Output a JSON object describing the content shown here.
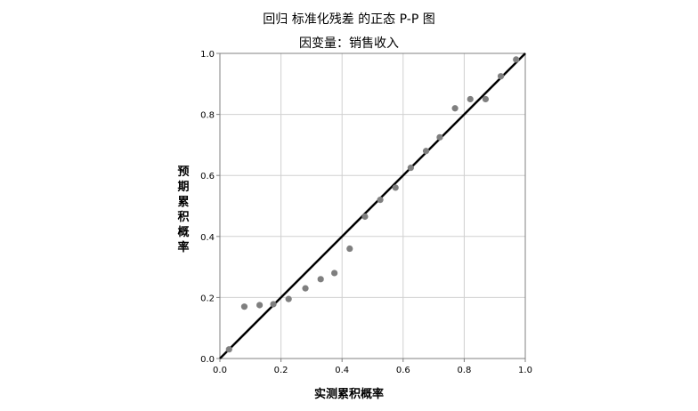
{
  "chart_data": {
    "type": "scatter",
    "title": "回归 标准化残差 的正态 P-P 图",
    "subtitle": "因变量：销售收入",
    "xlabel": "实测累积概率",
    "ylabel": "预期累积概率",
    "xlim": [
      0.0,
      1.0
    ],
    "ylim": [
      0.0,
      1.0
    ],
    "xticks": [
      "0.0",
      "0.2",
      "0.4",
      "0.6",
      "0.8",
      "1.0"
    ],
    "yticks": [
      "0.0",
      "0.2",
      "0.4",
      "0.6",
      "0.8",
      "1.0"
    ],
    "grid": true,
    "reference_line": [
      [
        0,
        0
      ],
      [
        1,
        1
      ]
    ],
    "colors": {
      "points": "#7f7f7f",
      "line": "#000000",
      "grid": "#d0d0d0"
    },
    "points": [
      {
        "x": 0.03,
        "y": 0.03
      },
      {
        "x": 0.08,
        "y": 0.17
      },
      {
        "x": 0.13,
        "y": 0.175
      },
      {
        "x": 0.175,
        "y": 0.178
      },
      {
        "x": 0.225,
        "y": 0.195
      },
      {
        "x": 0.28,
        "y": 0.23
      },
      {
        "x": 0.33,
        "y": 0.26
      },
      {
        "x": 0.375,
        "y": 0.28
      },
      {
        "x": 0.425,
        "y": 0.36
      },
      {
        "x": 0.475,
        "y": 0.465
      },
      {
        "x": 0.525,
        "y": 0.52
      },
      {
        "x": 0.575,
        "y": 0.56
      },
      {
        "x": 0.625,
        "y": 0.625
      },
      {
        "x": 0.675,
        "y": 0.68
      },
      {
        "x": 0.72,
        "y": 0.725
      },
      {
        "x": 0.77,
        "y": 0.82
      },
      {
        "x": 0.82,
        "y": 0.85
      },
      {
        "x": 0.87,
        "y": 0.85
      },
      {
        "x": 0.92,
        "y": 0.925
      },
      {
        "x": 0.97,
        "y": 0.98
      }
    ]
  }
}
